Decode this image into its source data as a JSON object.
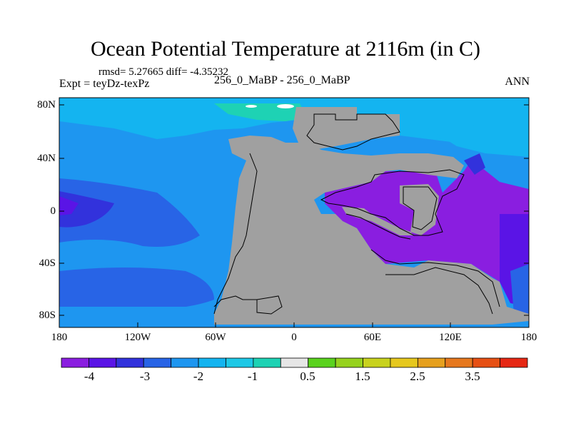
{
  "title": "Ocean Potential Temperature at 2116m (in C)",
  "stats": "rmsd= 5.27665  diff= -4.35232",
  "left_label": "Expt = teyDz-texPz",
  "center_label": "256_0_MaBP - 256_0_MaBP",
  "right_label": "ANN",
  "y_axis": [
    "80N",
    "40N",
    "0",
    "40S",
    "80S"
  ],
  "x_axis": [
    "180",
    "120W",
    "60W",
    "0",
    "60E",
    "120E",
    "180"
  ],
  "colorbar": {
    "colors": [
      "#8a1ee0",
      "#5a14e6",
      "#3232dc",
      "#2864e6",
      "#1e96f0",
      "#14b4f0",
      "#1ec8e6",
      "#1ed2b4",
      "#e6e6e6",
      "#5ad21e",
      "#96d21e",
      "#c8d21e",
      "#e6c81e",
      "#e6a01e",
      "#e6781e",
      "#e65014",
      "#e62814"
    ],
    "labels": [
      "-4",
      "-3",
      "-2",
      "-1",
      "0.5",
      "1.5",
      "2.5",
      "3.5"
    ]
  },
  "legend_colors": {
    "land": "#a0a0a0"
  }
}
